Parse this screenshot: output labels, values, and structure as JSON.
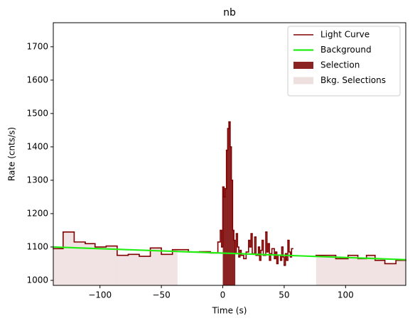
{
  "chart_data": {
    "type": "step",
    "title": "nb",
    "x_label": "Time (s)",
    "y_label": "Rate (cnts/s)",
    "xlim": [
      -138,
      149
    ],
    "ylim": [
      985,
      1772
    ],
    "xticks": [
      {
        "value": -100,
        "label": "−100"
      },
      {
        "value": -50,
        "label": "−50"
      },
      0,
      50,
      100
    ],
    "yticks": [
      1000,
      1100,
      1200,
      1300,
      1400,
      1500,
      1600,
      1700
    ],
    "legend": "upper right",
    "series": [
      {
        "name": "Light Curve",
        "color": "#800000",
        "bins": [
          -138,
          -130,
          -121,
          -112,
          -104,
          -95,
          -86,
          -77,
          -68,
          -59,
          -50,
          -41,
          -37,
          -28,
          -19,
          -10,
          -4,
          -2,
          -1,
          0,
          1,
          2,
          3,
          4,
          5,
          6,
          7,
          8,
          9,
          10,
          11,
          12,
          13,
          14,
          15,
          17,
          19,
          21,
          22,
          23,
          24,
          26,
          27,
          29,
          30,
          31,
          32,
          33,
          35,
          36,
          37,
          38,
          39,
          40,
          42,
          43,
          44,
          45,
          47,
          48,
          49,
          50,
          51,
          52,
          53,
          54,
          55,
          56,
          57,
          76,
          92,
          102,
          110,
          117,
          124,
          132,
          141,
          149
        ],
        "values": [
          1095,
          1145,
          1115,
          1110,
          1100,
          1103,
          1075,
          1078,
          1072,
          1097,
          1078,
          1092,
          1092,
          1085,
          1086,
          1082,
          1115,
          1150,
          1100,
          1280,
          1250,
          1275,
          1390,
          1455,
          1475,
          1400,
          1300,
          1150,
          1120,
          1080,
          1140,
          1100,
          1070,
          1090,
          1075,
          1065,
          1085,
          1120,
          1100,
          1140,
          1080,
          1130,
          1075,
          1100,
          1060,
          1090,
          1120,
          1075,
          1145,
          1085,
          1110,
          1060,
          1080,
          1095,
          1065,
          1085,
          1050,
          1075,
          1060,
          1100,
          1070,
          1045,
          1080,
          1060,
          1120,
          1085,
          1070,
          1095,
          null,
          1075,
          1065,
          1075,
          1065,
          1075,
          1060,
          1050,
          1060
        ]
      },
      {
        "name": "Background",
        "color": "#22ee11",
        "x": [
          -138,
          149
        ],
        "values": [
          1100,
          1062
        ]
      }
    ],
    "selections": [
      {
        "name": "Selection",
        "color": "#8b2323",
        "ranges": [
          [
            0,
            10
          ]
        ]
      },
      {
        "name": "Bkg. Selections",
        "color": "#efe0e0",
        "ranges": [
          [
            -138,
            -37
          ],
          [
            76,
            149
          ]
        ]
      }
    ]
  }
}
